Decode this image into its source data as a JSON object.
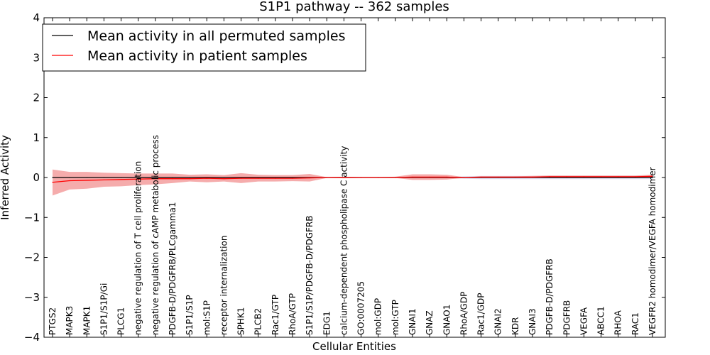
{
  "chart_data": {
    "type": "line",
    "title": "S1P1 pathway -- 362 samples",
    "xlabel": "Cellular Entities",
    "ylabel": "Inferred Activity",
    "ylim": [
      -4,
      4
    ],
    "yticks": [
      "−4",
      "−3",
      "−2",
      "−1",
      "0",
      "1",
      "2",
      "3",
      "4"
    ],
    "ytick_values": [
      -4,
      -3,
      -2,
      -1,
      0,
      1,
      2,
      3,
      4
    ],
    "legend_position": "top-left",
    "categories": [
      "PTGS2",
      "MAPK3",
      "MAPK1",
      "S1P1/S1P/Gi",
      "PLCG1",
      "negative regulation of T cell proliferation",
      "negative regulation of cAMP metabolic process",
      "PDGFB-D/PDGFRB/PLCgamma1",
      "S1P1/S1P",
      "mol:S1P",
      "receptor internalization",
      "SPHK1",
      "PLCB2",
      "Rac1/GTP",
      "RhoA/GTP",
      "S1P1/S1P/PDGFB-D/PDGFRB",
      "EDG1",
      "calcium-dependent phospholipase C activity",
      "GO:0007205",
      "mol:GDP",
      "mol:GTP",
      "GNAI1",
      "GNAZ",
      "GNAO1",
      "RhoA/GDP",
      "Rac1/GDP",
      "GNAI2",
      "KDR",
      "GNAI3",
      "PDGFB-D/PDGFRB",
      "PDGFRB",
      "VEGFA",
      "ABCC1",
      "RHOA",
      "RAC1",
      "VEGFR2 homodimer/VEGFA homodimer"
    ],
    "series": [
      {
        "name": "Mean activity in all permuted samples",
        "color": "#000000",
        "values": [
          0.0,
          0.0,
          0.0,
          0.0,
          0.0,
          0.0,
          0.0,
          0.0,
          0.0,
          0.0,
          0.0,
          0.0,
          0.0,
          0.0,
          0.0,
          0.0,
          0.0,
          0.0,
          0.0,
          0.0,
          0.0,
          0.0,
          0.0,
          0.0,
          0.0,
          0.0,
          0.0,
          0.0,
          0.0,
          0.0,
          0.0,
          0.0,
          0.0,
          0.0,
          0.0,
          0.0
        ],
        "lower": [
          -0.01,
          -0.01,
          -0.01,
          -0.01,
          -0.01,
          -0.01,
          -0.01,
          -0.01,
          -0.01,
          -0.01,
          -0.01,
          -0.01,
          -0.01,
          -0.01,
          -0.01,
          -0.01,
          -0.01,
          -0.01,
          -0.01,
          -0.01,
          -0.01,
          -0.01,
          -0.01,
          -0.01,
          -0.03,
          -0.04,
          -0.04,
          -0.04,
          -0.04,
          -0.04,
          -0.04,
          -0.04,
          -0.04,
          -0.04,
          -0.04,
          -0.04
        ],
        "upper": [
          0.01,
          0.01,
          0.01,
          0.01,
          0.01,
          0.01,
          0.01,
          0.01,
          0.01,
          0.01,
          0.01,
          0.01,
          0.01,
          0.01,
          0.01,
          0.01,
          0.01,
          0.01,
          0.01,
          0.01,
          0.01,
          0.01,
          0.01,
          0.01,
          0.03,
          0.04,
          0.04,
          0.04,
          0.04,
          0.04,
          0.04,
          0.04,
          0.04,
          0.04,
          0.04,
          0.04
        ]
      },
      {
        "name": "Mean activity in patient samples",
        "color": "#ff0000",
        "band_color": "#f08080",
        "values": [
          -0.12,
          -0.08,
          -0.07,
          -0.06,
          -0.05,
          -0.04,
          -0.03,
          -0.03,
          -0.03,
          -0.02,
          -0.03,
          -0.02,
          -0.02,
          -0.02,
          -0.02,
          -0.01,
          0.0,
          0.0,
          0.0,
          0.0,
          0.0,
          0.01,
          0.01,
          0.01,
          0.0,
          0.01,
          0.01,
          0.01,
          0.01,
          0.02,
          0.02,
          0.02,
          0.02,
          0.02,
          0.02,
          0.03
        ],
        "lower": [
          -0.45,
          -0.3,
          -0.28,
          -0.23,
          -0.22,
          -0.19,
          -0.17,
          -0.14,
          -0.1,
          -0.12,
          -0.1,
          -0.14,
          -0.1,
          -0.1,
          -0.09,
          -0.1,
          -0.01,
          -0.02,
          -0.01,
          -0.01,
          -0.01,
          -0.06,
          -0.06,
          -0.05,
          -0.01,
          -0.01,
          -0.01,
          -0.01,
          -0.01,
          -0.01,
          -0.01,
          -0.01,
          -0.01,
          -0.01,
          -0.01,
          -0.01
        ],
        "upper": [
          0.2,
          0.14,
          0.14,
          0.12,
          0.11,
          0.1,
          0.1,
          0.1,
          0.07,
          0.08,
          0.06,
          0.11,
          0.07,
          0.06,
          0.06,
          0.09,
          0.01,
          0.02,
          0.01,
          0.01,
          0.02,
          0.08,
          0.08,
          0.07,
          0.01,
          0.03,
          0.03,
          0.03,
          0.04,
          0.05,
          0.05,
          0.05,
          0.05,
          0.05,
          0.05,
          0.07
        ]
      }
    ]
  }
}
